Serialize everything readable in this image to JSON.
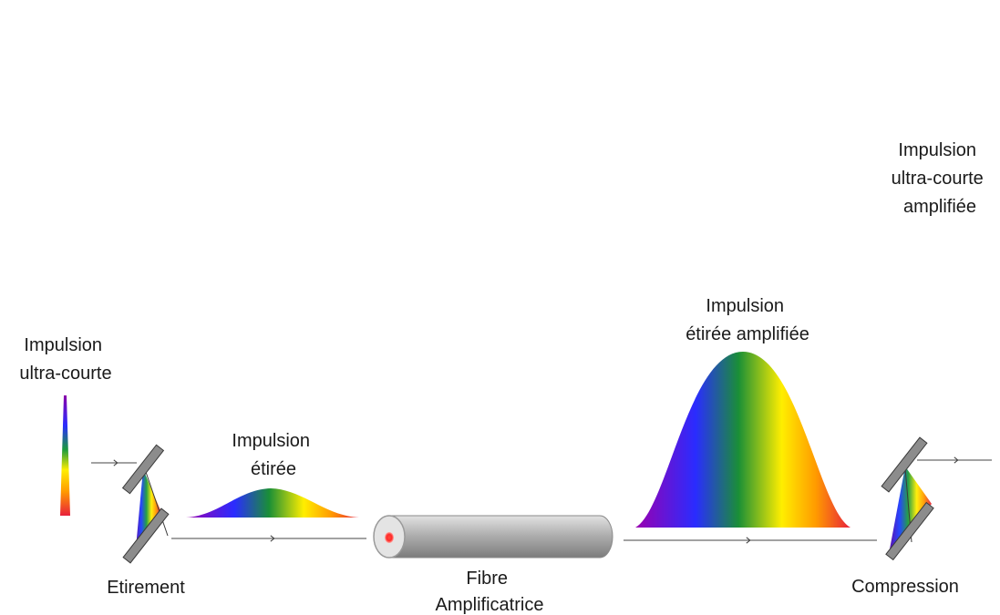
{
  "labels": {
    "input_pulse": [
      "Impulsion",
      "ultra-courte"
    ],
    "stretched_pulse": [
      "Impulsion",
      "étirée"
    ],
    "amplified_stretched_pulse": [
      "Impulsion",
      "étirée amplifiée"
    ],
    "output_pulse": [
      "Impulsion",
      "ultra-courte",
      "amplifiée"
    ],
    "stretcher": "Etirement",
    "fiber": [
      "Fibre",
      "Amplificatrice"
    ],
    "compressor": "Compression"
  },
  "colors": {
    "spectrum": [
      "#8a00a8",
      "#2a2cff",
      "#1a9a3c",
      "#ffee00",
      "#ff9a00",
      "#e8203c"
    ],
    "mirror": "#8a8a8a",
    "fiber_body": "#b4b4b4",
    "fiber_core": "#ff2a2a",
    "beam": "#444444"
  }
}
